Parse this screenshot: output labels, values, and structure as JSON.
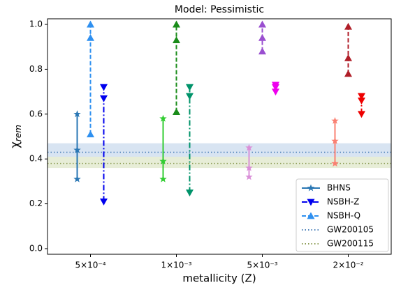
{
  "chart_data": {
    "type": "range-marker",
    "title": "Model: Pessimistic",
    "x_label": "metallicity (Z)",
    "y_label": {
      "symbol": "χ",
      "subscript": "rem"
    },
    "categories": [
      "5×10⁻⁴",
      "1×10⁻³",
      "5×10⁻³",
      "2×10⁻²"
    ],
    "ylim": [
      -0.025,
      1.025
    ],
    "yticks": [
      {
        "value": 0,
        "label": "0.0"
      },
      {
        "value": 0.2,
        "label": "0.2"
      },
      {
        "value": 0.4,
        "label": "0.4"
      },
      {
        "value": 0.6,
        "label": "0.6"
      },
      {
        "value": 0.8,
        "label": "0.8"
      },
      {
        "value": 1,
        "label": "1.0"
      }
    ],
    "legend": "lower right",
    "series": [
      {
        "name": "BHNS",
        "color": "#2a77b4",
        "marker": "star",
        "linestyle": "solid",
        "point_colors": [
          "#2a77b4",
          "#32cd32",
          "#da8fd8",
          "#fa8072"
        ],
        "values": [
          [
            0.31,
            0.44,
            0.6
          ],
          [
            0.31,
            0.39,
            0.58
          ],
          [
            0.32,
            0.36,
            0.45
          ],
          [
            0.38,
            0.48,
            0.57
          ]
        ]
      },
      {
        "name": "NSBH-Z",
        "color": "#0000ee",
        "marker": "down",
        "linestyle": "dashdot",
        "point_colors": [
          "#0000ee",
          "#00936a",
          "#ee00ee",
          "#ee0000"
        ],
        "values": [
          [
            0.21,
            0.67,
            0.72
          ],
          [
            0.25,
            0.68,
            0.72
          ],
          [
            0.7,
            0.72,
            0.73
          ],
          [
            0.6,
            0.66,
            0.68
          ]
        ]
      },
      {
        "name": "NSBH-Q",
        "color": "#2f90f0",
        "marker": "up",
        "linestyle": "dashed",
        "point_colors": [
          "#2f90f0",
          "#1a8c1a",
          "#9a4fd0",
          "#b01e28"
        ],
        "values": [
          [
            0.51,
            0.94,
            1.0
          ],
          [
            0.61,
            0.93,
            1.0
          ],
          [
            0.88,
            0.94,
            1.0
          ],
          [
            0.78,
            0.85,
            0.99
          ]
        ]
      }
    ],
    "lines": [
      {
        "name": "GW200105",
        "color": "#4a7fb8",
        "value": 0.43,
        "band": [
          0.41,
          0.47
        ],
        "band_color": "#c8d8ec"
      },
      {
        "name": "GW200115",
        "color": "#8a9a50",
        "value": 0.38,
        "band": [
          0.36,
          0.41
        ],
        "band_color": "#dde6c6"
      }
    ]
  }
}
